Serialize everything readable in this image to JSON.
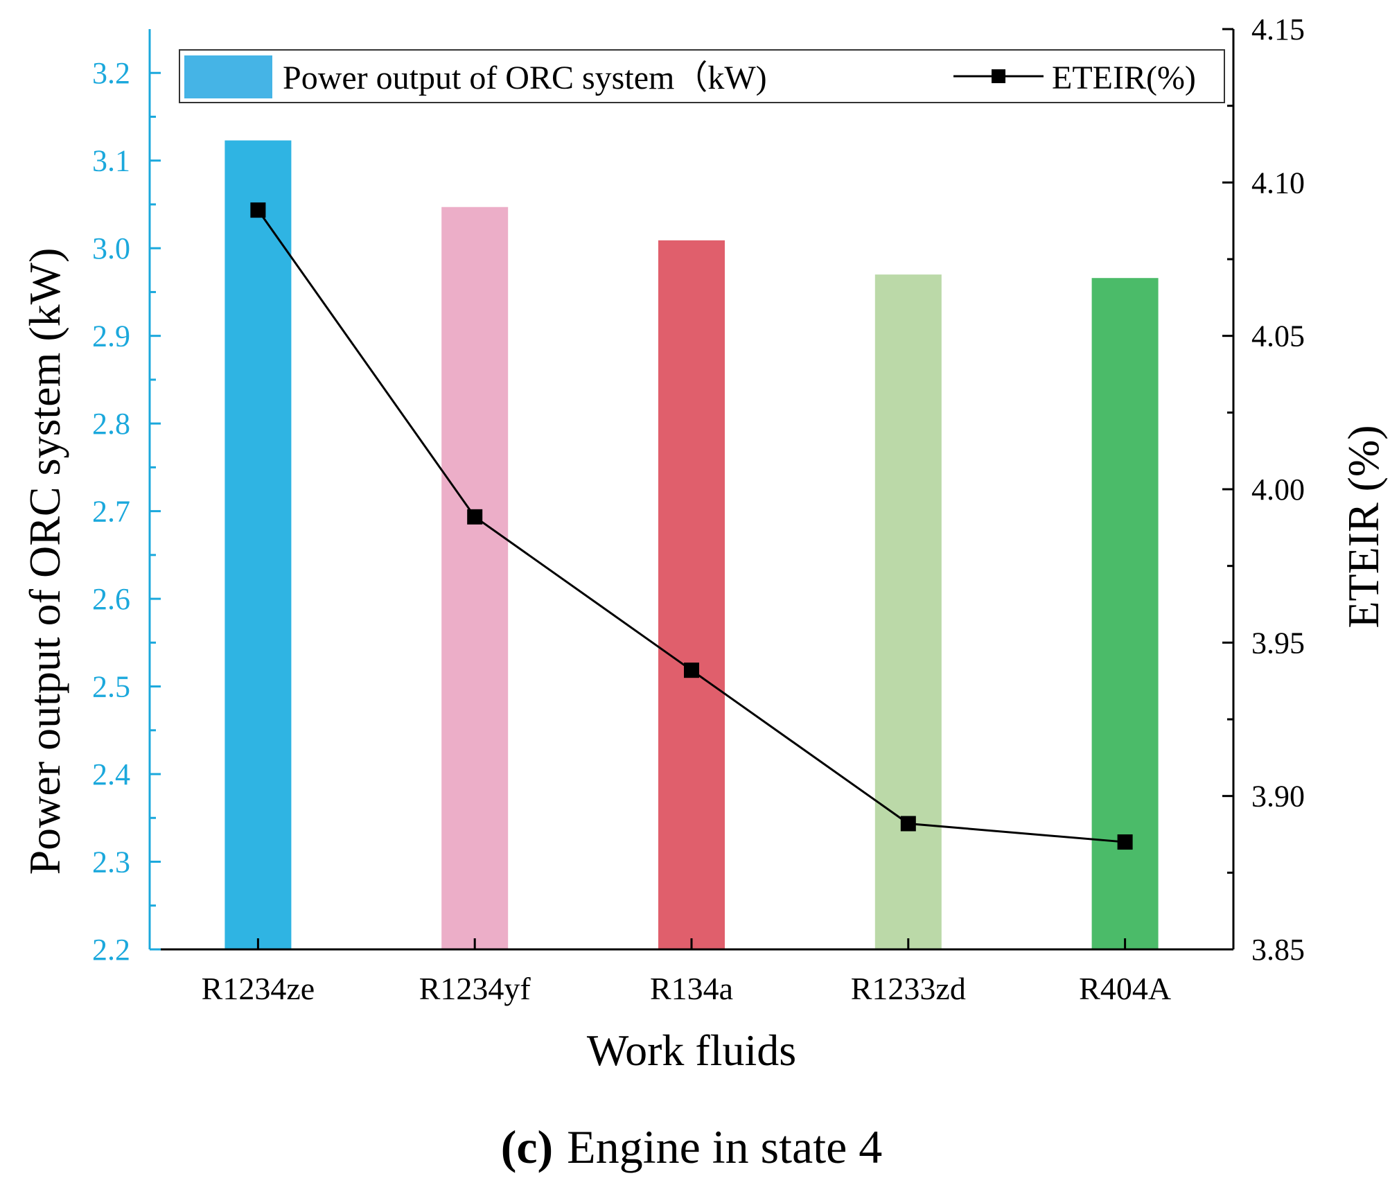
{
  "chart_data": {
    "type": "bar+line",
    "categories": [
      "R1234ze",
      "R1234yf",
      "R134a",
      "R1233zd",
      "R404A"
    ],
    "series": [
      {
        "name": "Power output of ORC system（kW)",
        "kind": "bar",
        "axis": "left",
        "values": [
          3.123,
          3.047,
          3.009,
          2.97,
          2.966
        ],
        "colors": [
          "#2fb4e3",
          "#ecaec8",
          "#e05f6c",
          "#bbd9a8",
          "#4bbb69"
        ]
      },
      {
        "name": "ETEIR(%)",
        "kind": "line",
        "axis": "right",
        "marker": "square",
        "color": "#000000",
        "values": [
          4.091,
          3.991,
          3.941,
          3.891,
          3.885
        ]
      }
    ],
    "xlabel": "Work fluids",
    "ylabel_left": "Power output of ORC system (kW)",
    "ylabel_right": "ETEIR (%)",
    "ylim_left": [
      2.2,
      3.25
    ],
    "ylim_right": [
      3.85,
      4.15
    ],
    "yticks_left": [
      "2.2",
      "2.3",
      "2.4",
      "2.5",
      "2.6",
      "2.7",
      "2.8",
      "2.9",
      "3.0",
      "3.1",
      "3.2"
    ],
    "yticks_right": [
      "3.85",
      "3.90",
      "3.95",
      "4.00",
      "4.05",
      "4.10",
      "4.15"
    ],
    "left_axis_color": "#1ba8dc",
    "legend_position": "top",
    "caption_label": "(c)",
    "caption_text": "Engine in state 4"
  }
}
